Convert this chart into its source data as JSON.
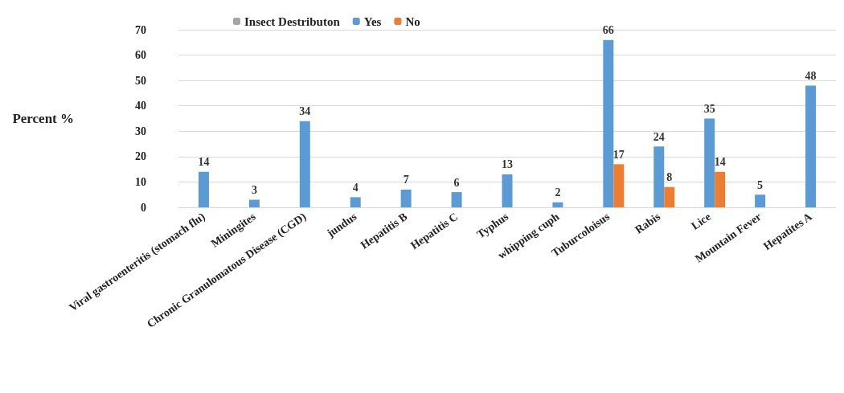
{
  "chart_data": {
    "type": "bar",
    "ylabel": "Percent %",
    "categories": [
      "Viral gastroenteritis (stomach flu)",
      "Miningites",
      "Chronic Granulomatous Disease (CGD)",
      "jundus",
      "Hepatitis B",
      "Hepatitis C",
      "Typhus",
      "whipping cuph",
      "Tuburcoloisus",
      "Rabis",
      "Lice",
      "Mountain Fever",
      "Hepatites A"
    ],
    "series": [
      {
        "name": "Insect Destributon",
        "color": "#a5a5a5",
        "values": [
          null,
          null,
          null,
          null,
          null,
          null,
          null,
          null,
          null,
          null,
          null,
          null,
          null
        ]
      },
      {
        "name": "Yes",
        "color": "#5b9bd5",
        "values": [
          14,
          3,
          34,
          4,
          7,
          6,
          13,
          2,
          66,
          24,
          35,
          5,
          48
        ]
      },
      {
        "name": "No",
        "color": "#ed7d31",
        "values": [
          null,
          null,
          null,
          null,
          null,
          null,
          null,
          null,
          17,
          8,
          14,
          null,
          null
        ]
      }
    ],
    "ylim": [
      0,
      70
    ],
    "yticks": [
      0,
      10,
      20,
      30,
      40,
      50,
      60,
      70
    ],
    "grid": "y",
    "legend": "top left",
    "data_labels": true
  }
}
